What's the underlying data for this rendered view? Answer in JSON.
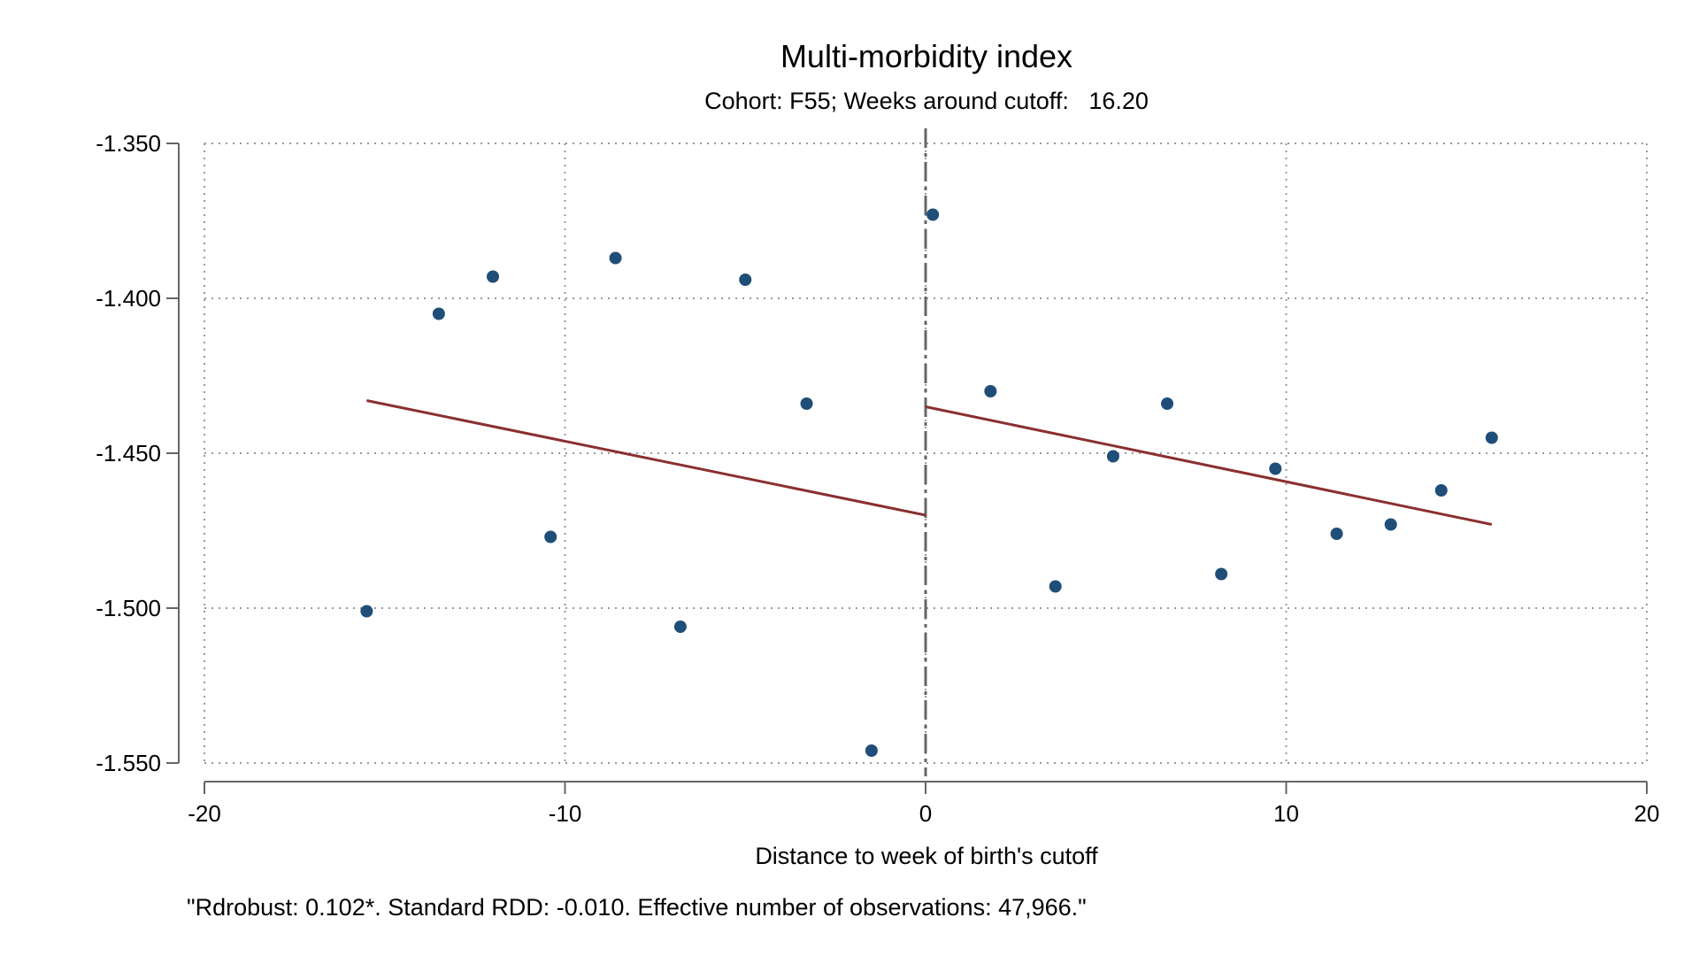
{
  "chart_data": {
    "type": "scatter",
    "title": "Multi-morbidity index",
    "subtitle": "Cohort: F55; Weeks around cutoff:   16.20",
    "xlabel": "Distance to week of birth's cutoff",
    "ylabel": "",
    "note": "\"Rdrobust: 0.102*. Standard RDD: -0.010. Effective number of observations: 47,966.\"",
    "xlim": [
      -20,
      20
    ],
    "ylim": [
      -1.55,
      -1.35
    ],
    "x_ticks": [
      -20,
      -10,
      0,
      10,
      20
    ],
    "x_tick_labels": [
      "-20",
      "-10",
      "0",
      "10",
      "20"
    ],
    "y_ticks": [
      -1.35,
      -1.4,
      -1.45,
      -1.5,
      -1.55
    ],
    "y_tick_labels": [
      "-1.350",
      "-1.400",
      "-1.450",
      "-1.500",
      "-1.550"
    ],
    "grid": true,
    "cutoff_x": 0,
    "colors": {
      "points": "#1f4e79",
      "fit_line": "#8b2f2f",
      "cutoff_line": "#666666",
      "grid": "#999999",
      "axis": "#666666"
    },
    "series": [
      {
        "values": [
          {
            "x": -15.5,
            "y": -1.501
          },
          {
            "x": -13.5,
            "y": -1.405
          },
          {
            "x": -12.0,
            "y": -1.393
          },
          {
            "x": -10.4,
            "y": -1.477
          },
          {
            "x": -8.6,
            "y": -1.387
          },
          {
            "x": -6.8,
            "y": -1.506
          },
          {
            "x": -5.0,
            "y": -1.394
          },
          {
            "x": -3.3,
            "y": -1.434
          },
          {
            "x": -1.5,
            "y": -1.546
          },
          {
            "x": 0.2,
            "y": -1.373
          },
          {
            "x": 1.8,
            "y": -1.43
          },
          {
            "x": 3.6,
            "y": -1.493
          },
          {
            "x": 5.2,
            "y": -1.451
          },
          {
            "x": 6.7,
            "y": -1.434
          },
          {
            "x": 8.2,
            "y": -1.489
          },
          {
            "x": 9.7,
            "y": -1.455
          },
          {
            "x": 11.4,
            "y": -1.476
          },
          {
            "x": 12.9,
            "y": -1.473
          },
          {
            "x": 14.3,
            "y": -1.462
          },
          {
            "x": 15.7,
            "y": -1.445
          }
        ]
      }
    ],
    "fit_lines": [
      {
        "x": [
          -15.5,
          0
        ],
        "y": [
          -1.433,
          -1.47
        ]
      },
      {
        "x": [
          0,
          15.7
        ],
        "y": [
          -1.435,
          -1.473
        ]
      }
    ]
  }
}
